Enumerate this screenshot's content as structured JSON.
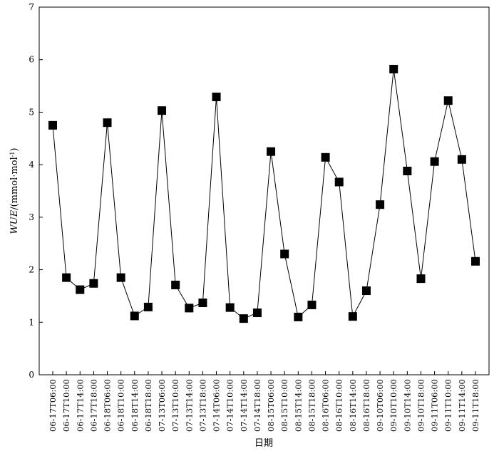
{
  "chart_data": {
    "type": "line",
    "xlabel": "日期",
    "ylabel": {
      "italic": "WUE",
      "unit_open": "/(mmol·mol",
      "unit_sup": "-1",
      "unit_close": ")"
    },
    "ylim": [
      0,
      7
    ],
    "yticks": [
      "0",
      "1",
      "2",
      "3",
      "4",
      "5",
      "6",
      "7"
    ],
    "grid": false,
    "marker": "square",
    "series": [
      {
        "x": [
          "06-17T06:00",
          "06-17T10:00",
          "06-17T14:00",
          "06-17T18:00",
          "06-18T06:00",
          "06-18T10:00",
          "06-18T14:00",
          "06-18T18:00",
          "07-13T06:00",
          "07-13T10:00",
          "07-13T14:00",
          "07-13T18:00",
          "07-14T06:00",
          "07-14T10:00",
          "07-14T14:00",
          "07-14T18:00",
          "08-15T06:00",
          "08-15T10:00",
          "08-15T14:00",
          "08-15T18:00",
          "08-16T06:00",
          "08-16T10:00",
          "08-16T14:00",
          "08-16T18:00",
          "09-10T06:00",
          "09-10T10:00",
          "09-10T14:00",
          "09-10T18:00",
          "09-11T06:00",
          "09-11T10:00",
          "09-11T14:00",
          "09-11T18:00"
        ],
        "values": [
          4.75,
          1.85,
          1.62,
          1.74,
          4.8,
          1.85,
          1.12,
          1.29,
          5.03,
          1.71,
          1.27,
          1.37,
          5.29,
          1.28,
          1.07,
          1.18,
          4.25,
          2.3,
          1.1,
          1.33,
          4.14,
          3.67,
          1.11,
          1.6,
          3.24,
          5.82,
          3.88,
          1.83,
          4.06,
          5.22,
          4.1,
          2.16
        ]
      }
    ]
  }
}
